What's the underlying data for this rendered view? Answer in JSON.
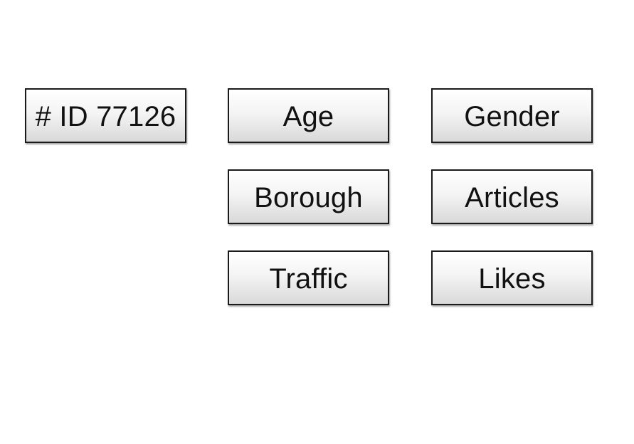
{
  "record": {
    "id_label": "# ID 77126"
  },
  "attributes": [
    {
      "label": "Age"
    },
    {
      "label": "Gender"
    },
    {
      "label": "Borough"
    },
    {
      "label": "Articles"
    },
    {
      "label": "Traffic"
    },
    {
      "label": "Likes"
    }
  ]
}
